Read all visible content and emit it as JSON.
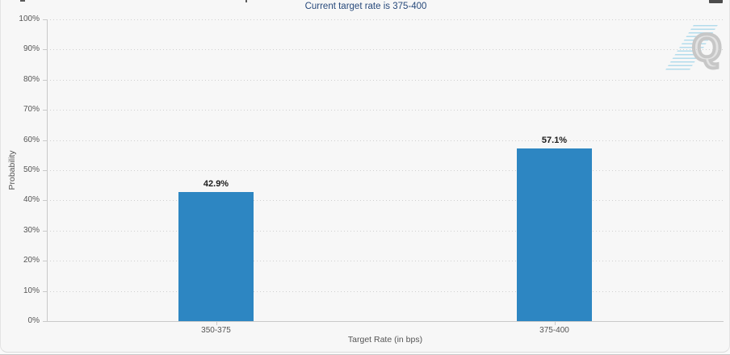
{
  "icons": {
    "menu": "hamburger-menu-icon",
    "watermark": "quikstrike-q-logo"
  },
  "watermark": {
    "letter": "Q"
  },
  "chart_data": {
    "type": "bar",
    "title": "Current target rate is 375-400",
    "categories": [
      "350-375",
      "375-400"
    ],
    "values": [
      42.9,
      57.1
    ],
    "data_labels": [
      "42.9%",
      "57.1%"
    ],
    "xlabel": "Target Rate (in bps)",
    "ylabel": "Probability",
    "ylim": [
      0,
      100
    ],
    "y_tick_step": 10,
    "y_tick_labels": [
      "0%",
      "10%",
      "20%",
      "30%",
      "40%",
      "50%",
      "60%",
      "70%",
      "80%",
      "90%",
      "100%"
    ],
    "legend": "none",
    "grid": "horizontal-dotted",
    "bar_color": "#2d86c2",
    "title_color": "#27497b"
  }
}
